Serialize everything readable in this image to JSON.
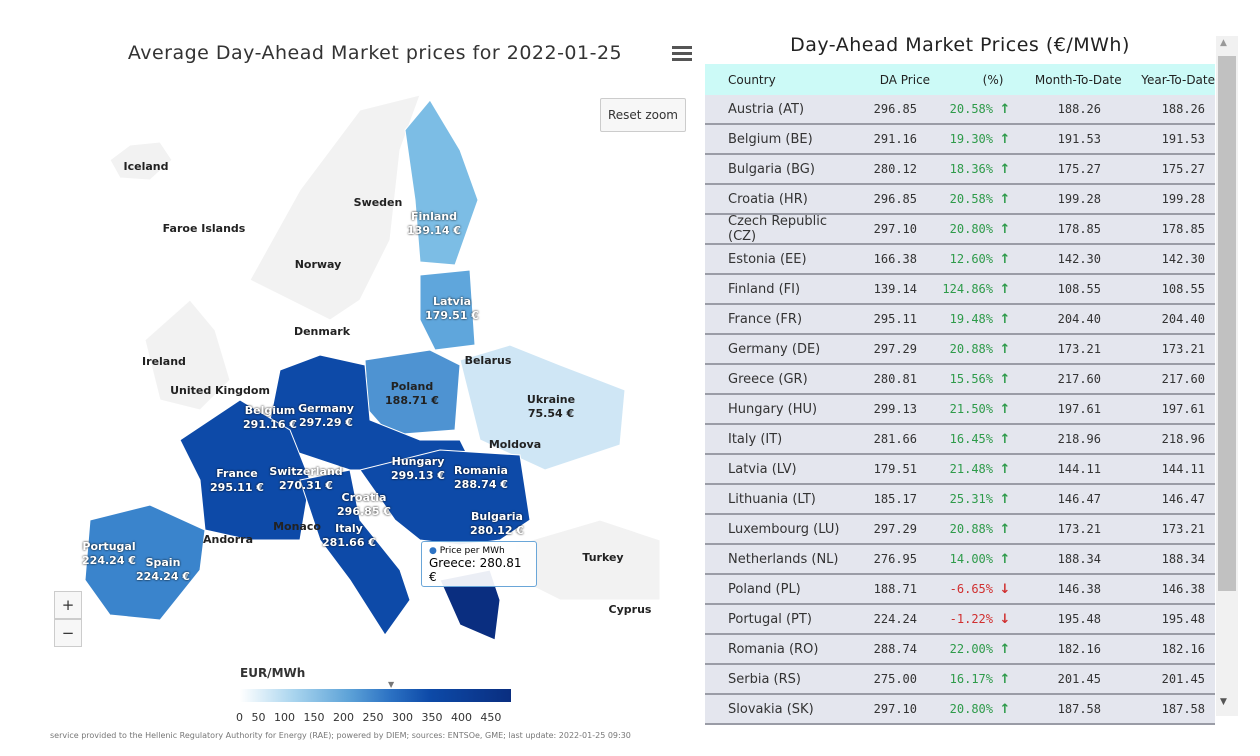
{
  "map": {
    "title": "Average Day-Ahead Market prices for 2022-01-25",
    "reset_zoom": "Reset zoom",
    "zoom_in": "+",
    "zoom_out": "−",
    "labels": [
      {
        "name": "Iceland"
      },
      {
        "name": "Faroe Islands"
      },
      {
        "name": "Sweden"
      },
      {
        "name": "Norway"
      },
      {
        "name": "Finland",
        "value": "139.14 €"
      },
      {
        "name": "Latvia",
        "value": "179.51 €"
      },
      {
        "name": "Denmark"
      },
      {
        "name": "Ireland"
      },
      {
        "name": "Belarus"
      },
      {
        "name": "United Kingdom"
      },
      {
        "name": "Poland",
        "value": "188.71 €"
      },
      {
        "name": "Ukraine",
        "value": "75.54 €"
      },
      {
        "name": "Belgium",
        "value": "291.16 €"
      },
      {
        "name": "Germany",
        "value": "297.29 €"
      },
      {
        "name": "Moldova"
      },
      {
        "name": "Hungary",
        "value": "299.13 €"
      },
      {
        "name": "France",
        "value": "295.11 €"
      },
      {
        "name": "Switzerland",
        "value": "270.31 €"
      },
      {
        "name": "Romania",
        "value": "288.74 €"
      },
      {
        "name": "Croatia",
        "value": "296.85 €"
      },
      {
        "name": "Bulgaria",
        "value": "280.12 €"
      },
      {
        "name": "Andorra"
      },
      {
        "name": "Monaco"
      },
      {
        "name": "Italy",
        "value": "281.66 €"
      },
      {
        "name": "Portugal",
        "value": "224.24 €"
      },
      {
        "name": "Spain",
        "value": "224.24 €"
      },
      {
        "name": "Turkey"
      },
      {
        "name": "Cyprus"
      }
    ],
    "tooltip": {
      "series": "Price per MWh",
      "text": "Greece: 280.81 €"
    },
    "legend": {
      "title": "EUR/MWh",
      "ticks": "0 50 100 150 200 250 300 350 400 450"
    },
    "footer": "service provided to the Hellenic Regulatory Authority for Energy (RAE); powered by DIEM; sources: ENTSOe, GME; last update: 2022-01-25 09:30"
  },
  "table": {
    "title": "Day-Ahead Market Prices (€/MWh)",
    "headers": [
      "Country",
      "DA Price",
      "(%)",
      "Month-To-Date",
      "Year-To-Date"
    ],
    "colors": {
      "up": "#2e9b4a",
      "down": "#d03030"
    },
    "rows": [
      [
        "Austria (AT)",
        "296.85",
        "20.58%",
        "up",
        "188.26",
        "188.26"
      ],
      [
        "Belgium (BE)",
        "291.16",
        "19.30%",
        "up",
        "191.53",
        "191.53"
      ],
      [
        "Bulgaria (BG)",
        "280.12",
        "18.36%",
        "up",
        "175.27",
        "175.27"
      ],
      [
        "Croatia (HR)",
        "296.85",
        "20.58%",
        "up",
        "199.28",
        "199.28"
      ],
      [
        "Czech Republic (CZ)",
        "297.10",
        "20.80%",
        "up",
        "178.85",
        "178.85"
      ],
      [
        "Estonia (EE)",
        "166.38",
        "12.60%",
        "up",
        "142.30",
        "142.30"
      ],
      [
        "Finland (FI)",
        "139.14",
        "124.86%",
        "up",
        "108.55",
        "108.55"
      ],
      [
        "France (FR)",
        "295.11",
        "19.48%",
        "up",
        "204.40",
        "204.40"
      ],
      [
        "Germany (DE)",
        "297.29",
        "20.88%",
        "up",
        "173.21",
        "173.21"
      ],
      [
        "Greece (GR)",
        "280.81",
        "15.56%",
        "up",
        "217.60",
        "217.60"
      ],
      [
        "Hungary (HU)",
        "299.13",
        "21.50%",
        "up",
        "197.61",
        "197.61"
      ],
      [
        "Italy (IT)",
        "281.66",
        "16.45%",
        "up",
        "218.96",
        "218.96"
      ],
      [
        "Latvia (LV)",
        "179.51",
        "21.48%",
        "up",
        "144.11",
        "144.11"
      ],
      [
        "Lithuania (LT)",
        "185.17",
        "25.31%",
        "up",
        "146.47",
        "146.47"
      ],
      [
        "Luxembourg (LU)",
        "297.29",
        "20.88%",
        "up",
        "173.21",
        "173.21"
      ],
      [
        "Netherlands (NL)",
        "276.95",
        "14.00%",
        "up",
        "188.34",
        "188.34"
      ],
      [
        "Poland (PL)",
        "188.71",
        "-6.65%",
        "down",
        "146.38",
        "146.38"
      ],
      [
        "Portugal (PT)",
        "224.24",
        "-1.22%",
        "down",
        "195.48",
        "195.48"
      ],
      [
        "Romania (RO)",
        "288.74",
        "22.00%",
        "up",
        "182.16",
        "182.16"
      ],
      [
        "Serbia (RS)",
        "275.00",
        "16.17%",
        "up",
        "201.45",
        "201.45"
      ],
      [
        "Slovakia (SK)",
        "297.10",
        "20.80%",
        "up",
        "187.58",
        "187.58"
      ]
    ]
  }
}
